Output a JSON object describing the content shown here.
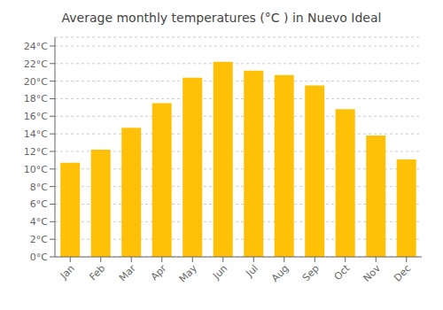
{
  "chart_data": {
    "type": "bar",
    "title": "Average monthly temperatures (°C ) in Nuevo Ideal",
    "categories": [
      "Jan",
      "Feb",
      "Mar",
      "Apr",
      "May",
      "Jun",
      "Jul",
      "Aug",
      "Sep",
      "Oct",
      "Nov",
      "Dec"
    ],
    "values": [
      10.7,
      12.2,
      14.7,
      17.5,
      20.4,
      22.2,
      21.2,
      20.7,
      19.5,
      16.8,
      13.8,
      11.1
    ],
    "color": "#FFC107",
    "ylim": [
      0,
      25
    ],
    "yticks": [
      {
        "value": 0,
        "label": "0°C"
      },
      {
        "value": 2,
        "label": "2°C"
      },
      {
        "value": 4,
        "label": "4°C"
      },
      {
        "value": 6,
        "label": "6°C"
      },
      {
        "value": 8,
        "label": "8°C"
      },
      {
        "value": 10,
        "label": "10°C"
      },
      {
        "value": 12,
        "label": "12°C"
      },
      {
        "value": 14,
        "label": "14°C"
      },
      {
        "value": 16,
        "label": "16°C"
      },
      {
        "value": 18,
        "label": "18°C"
      },
      {
        "value": 20,
        "label": "20°C"
      },
      {
        "value": 22,
        "label": "22°C"
      },
      {
        "value": 24,
        "label": "24°C"
      }
    ],
    "grid": true
  }
}
